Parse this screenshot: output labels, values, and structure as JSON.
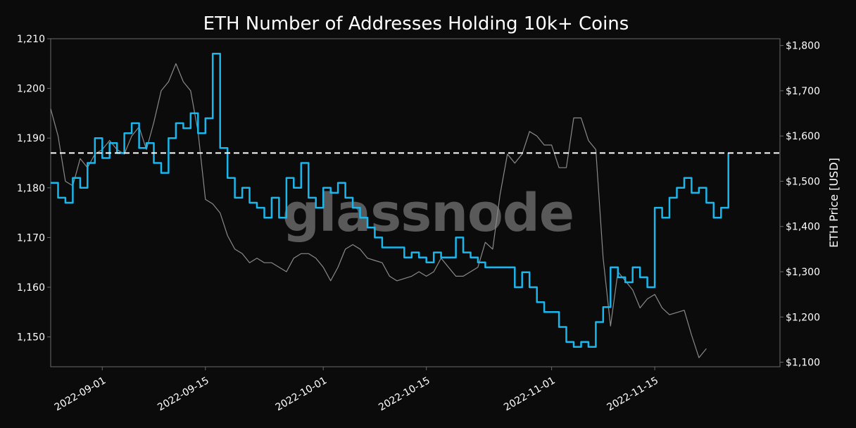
{
  "chart_data": {
    "type": "line",
    "title": "ETH Number of Addresses Holding 10k+ Coins",
    "watermark": "glassnode",
    "x_range": [
      "2022-08-25",
      "2022-12-02"
    ],
    "x_ticks": [
      "2022-09-01",
      "2022-09-15",
      "2022-10-01",
      "2022-10-15",
      "2022-11-01",
      "2022-11-15"
    ],
    "y_left": {
      "range": [
        1144,
        1210
      ],
      "ticks": [
        1150,
        1160,
        1170,
        1180,
        1190,
        1200,
        1210
      ],
      "tick_labels": [
        "1,150",
        "1,160",
        "1,170",
        "1,180",
        "1,190",
        "1,200",
        "1,210"
      ]
    },
    "y_right": {
      "label": "ETH Price [USD]",
      "range": [
        1090,
        1815
      ],
      "ticks": [
        1100,
        1200,
        1300,
        1400,
        1500,
        1600,
        1700,
        1800
      ],
      "tick_labels": [
        "$1,100",
        "$1,200",
        "$1,300",
        "$1,400",
        "$1,500",
        "$1,600",
        "$1,700",
        "$1,800"
      ]
    },
    "grid": false,
    "reference_line": {
      "axis": "left",
      "value": 1187,
      "style": "dashed",
      "color": "#ffffff"
    },
    "series": [
      {
        "axis": "left",
        "color": "#1ab6ec",
        "points": [
          [
            "2022-08-25",
            1181
          ],
          [
            "2022-08-26",
            1178
          ],
          [
            "2022-08-27",
            1177
          ],
          [
            "2022-08-28",
            1182
          ],
          [
            "2022-08-29",
            1180
          ],
          [
            "2022-08-30",
            1185
          ],
          [
            "2022-08-31",
            1190
          ],
          [
            "2022-09-01",
            1186
          ],
          [
            "2022-09-02",
            1189
          ],
          [
            "2022-09-03",
            1187
          ],
          [
            "2022-09-04",
            1191
          ],
          [
            "2022-09-05",
            1193
          ],
          [
            "2022-09-06",
            1188
          ],
          [
            "2022-09-07",
            1189
          ],
          [
            "2022-09-08",
            1185
          ],
          [
            "2022-09-09",
            1183
          ],
          [
            "2022-09-10",
            1190
          ],
          [
            "2022-09-11",
            1193
          ],
          [
            "2022-09-12",
            1192
          ],
          [
            "2022-09-13",
            1195
          ],
          [
            "2022-09-14",
            1191
          ],
          [
            "2022-09-15",
            1194
          ],
          [
            "2022-09-16",
            1207
          ],
          [
            "2022-09-17",
            1188
          ],
          [
            "2022-09-18",
            1182
          ],
          [
            "2022-09-19",
            1178
          ],
          [
            "2022-09-20",
            1180
          ],
          [
            "2022-09-21",
            1177
          ],
          [
            "2022-09-22",
            1176
          ],
          [
            "2022-09-23",
            1174
          ],
          [
            "2022-09-24",
            1178
          ],
          [
            "2022-09-25",
            1174
          ],
          [
            "2022-09-26",
            1182
          ],
          [
            "2022-09-27",
            1180
          ],
          [
            "2022-09-28",
            1185
          ],
          [
            "2022-09-29",
            1178
          ],
          [
            "2022-09-30",
            1176
          ],
          [
            "2022-10-01",
            1180
          ],
          [
            "2022-10-02",
            1179
          ],
          [
            "2022-10-03",
            1181
          ],
          [
            "2022-10-04",
            1178
          ],
          [
            "2022-10-05",
            1176
          ],
          [
            "2022-10-06",
            1174
          ],
          [
            "2022-10-07",
            1172
          ],
          [
            "2022-10-08",
            1170
          ],
          [
            "2022-10-09",
            1168
          ],
          [
            "2022-10-10",
            1168
          ],
          [
            "2022-10-11",
            1168
          ],
          [
            "2022-10-12",
            1166
          ],
          [
            "2022-10-13",
            1167
          ],
          [
            "2022-10-14",
            1166
          ],
          [
            "2022-10-15",
            1165
          ],
          [
            "2022-10-16",
            1167
          ],
          [
            "2022-10-17",
            1166
          ],
          [
            "2022-10-18",
            1166
          ],
          [
            "2022-10-19",
            1170
          ],
          [
            "2022-10-20",
            1167
          ],
          [
            "2022-10-21",
            1166
          ],
          [
            "2022-10-22",
            1165
          ],
          [
            "2022-10-23",
            1164
          ],
          [
            "2022-10-24",
            1164
          ],
          [
            "2022-10-25",
            1164
          ],
          [
            "2022-10-26",
            1164
          ],
          [
            "2022-10-27",
            1160
          ],
          [
            "2022-10-28",
            1163
          ],
          [
            "2022-10-29",
            1160
          ],
          [
            "2022-10-30",
            1157
          ],
          [
            "2022-10-31",
            1155
          ],
          [
            "2022-11-01",
            1155
          ],
          [
            "2022-11-02",
            1152
          ],
          [
            "2022-11-03",
            1149
          ],
          [
            "2022-11-04",
            1148
          ],
          [
            "2022-11-05",
            1149
          ],
          [
            "2022-11-06",
            1148
          ],
          [
            "2022-11-07",
            1153
          ],
          [
            "2022-11-08",
            1156
          ],
          [
            "2022-11-09",
            1164
          ],
          [
            "2022-11-10",
            1162
          ],
          [
            "2022-11-11",
            1161
          ],
          [
            "2022-11-12",
            1164
          ],
          [
            "2022-11-13",
            1162
          ],
          [
            "2022-11-14",
            1160
          ],
          [
            "2022-11-15",
            1176
          ],
          [
            "2022-11-16",
            1174
          ],
          [
            "2022-11-17",
            1178
          ],
          [
            "2022-11-18",
            1180
          ],
          [
            "2022-11-19",
            1182
          ],
          [
            "2022-11-20",
            1179
          ],
          [
            "2022-11-21",
            1180
          ],
          [
            "2022-11-22",
            1177
          ],
          [
            "2022-11-23",
            1174
          ],
          [
            "2022-11-24",
            1176
          ],
          [
            "2022-11-25",
            1187
          ]
        ]
      },
      {
        "axis": "right",
        "color": "#8a8a8a",
        "points": [
          [
            "2022-08-25",
            1660
          ],
          [
            "2022-08-26",
            1600
          ],
          [
            "2022-08-27",
            1500
          ],
          [
            "2022-08-28",
            1490
          ],
          [
            "2022-08-29",
            1550
          ],
          [
            "2022-08-30",
            1530
          ],
          [
            "2022-08-31",
            1560
          ],
          [
            "2022-09-01",
            1570
          ],
          [
            "2022-09-02",
            1590
          ],
          [
            "2022-09-03",
            1570
          ],
          [
            "2022-09-04",
            1560
          ],
          [
            "2022-09-05",
            1600
          ],
          [
            "2022-09-06",
            1620
          ],
          [
            "2022-09-07",
            1570
          ],
          [
            "2022-09-08",
            1630
          ],
          [
            "2022-09-09",
            1700
          ],
          [
            "2022-09-10",
            1720
          ],
          [
            "2022-09-11",
            1760
          ],
          [
            "2022-09-12",
            1720
          ],
          [
            "2022-09-13",
            1700
          ],
          [
            "2022-09-14",
            1610
          ],
          [
            "2022-09-15",
            1460
          ],
          [
            "2022-09-16",
            1450
          ],
          [
            "2022-09-17",
            1430
          ],
          [
            "2022-09-18",
            1380
          ],
          [
            "2022-09-19",
            1350
          ],
          [
            "2022-09-20",
            1340
          ],
          [
            "2022-09-21",
            1320
          ],
          [
            "2022-09-22",
            1330
          ],
          [
            "2022-09-23",
            1320
          ],
          [
            "2022-09-24",
            1320
          ],
          [
            "2022-09-25",
            1310
          ],
          [
            "2022-09-26",
            1300
          ],
          [
            "2022-09-27",
            1330
          ],
          [
            "2022-09-28",
            1340
          ],
          [
            "2022-09-29",
            1340
          ],
          [
            "2022-09-30",
            1330
          ],
          [
            "2022-10-01",
            1310
          ],
          [
            "2022-10-02",
            1280
          ],
          [
            "2022-10-03",
            1310
          ],
          [
            "2022-10-04",
            1350
          ],
          [
            "2022-10-05",
            1360
          ],
          [
            "2022-10-06",
            1350
          ],
          [
            "2022-10-07",
            1330
          ],
          [
            "2022-10-08",
            1325
          ],
          [
            "2022-10-09",
            1320
          ],
          [
            "2022-10-10",
            1290
          ],
          [
            "2022-10-11",
            1280
          ],
          [
            "2022-10-12",
            1285
          ],
          [
            "2022-10-13",
            1290
          ],
          [
            "2022-10-14",
            1300
          ],
          [
            "2022-10-15",
            1290
          ],
          [
            "2022-10-16",
            1300
          ],
          [
            "2022-10-17",
            1330
          ],
          [
            "2022-10-18",
            1310
          ],
          [
            "2022-10-19",
            1290
          ],
          [
            "2022-10-20",
            1290
          ],
          [
            "2022-10-21",
            1300
          ],
          [
            "2022-10-22",
            1310
          ],
          [
            "2022-10-23",
            1365
          ],
          [
            "2022-10-24",
            1350
          ],
          [
            "2022-10-25",
            1470
          ],
          [
            "2022-10-26",
            1560
          ],
          [
            "2022-10-27",
            1540
          ],
          [
            "2022-10-28",
            1560
          ],
          [
            "2022-10-29",
            1610
          ],
          [
            "2022-10-30",
            1600
          ],
          [
            "2022-10-31",
            1580
          ],
          [
            "2022-11-01",
            1580
          ],
          [
            "2022-11-02",
            1530
          ],
          [
            "2022-11-03",
            1530
          ],
          [
            "2022-11-04",
            1640
          ],
          [
            "2022-11-05",
            1640
          ],
          [
            "2022-11-06",
            1590
          ],
          [
            "2022-11-07",
            1570
          ],
          [
            "2022-11-08",
            1330
          ],
          [
            "2022-11-09",
            1180
          ],
          [
            "2022-11-10",
            1300
          ],
          [
            "2022-11-11",
            1280
          ],
          [
            "2022-11-12",
            1260
          ],
          [
            "2022-11-13",
            1220
          ],
          [
            "2022-11-14",
            1240
          ],
          [
            "2022-11-15",
            1250
          ],
          [
            "2022-11-16",
            1220
          ],
          [
            "2022-11-17",
            1205
          ],
          [
            "2022-11-18",
            1210
          ],
          [
            "2022-11-19",
            1215
          ],
          [
            "2022-11-20",
            1160
          ],
          [
            "2022-11-21",
            1110
          ],
          [
            "2022-11-22",
            1130
          ]
        ]
      }
    ]
  }
}
